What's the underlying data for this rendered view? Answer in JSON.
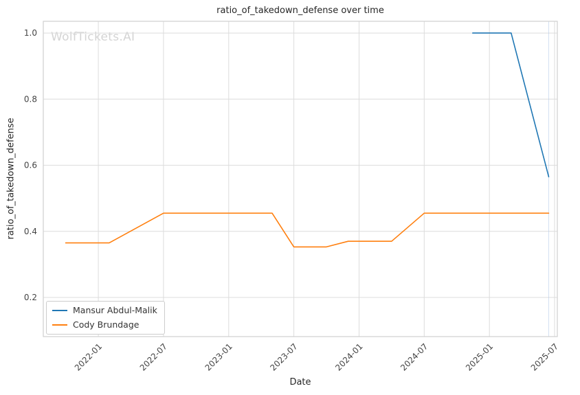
{
  "watermark": "WolfTickets.AI",
  "chart_data": {
    "type": "line",
    "title": "ratio_of_takedown_defense over time",
    "xlabel": "Date",
    "ylabel": "ratio_of_takedown_defense",
    "x_tick_labels": [
      "2022-01",
      "2022-07",
      "2023-01",
      "2023-07",
      "2024-01",
      "2024-07",
      "2025-01",
      "2025-07"
    ],
    "y_tick_values": [
      0.2,
      0.4,
      0.6,
      0.8,
      1.0
    ],
    "xlim": [
      2021.578,
      2025.521
    ],
    "ylim": [
      0.0816,
      1.0355
    ],
    "grid": true,
    "legend_position": "lower left",
    "series": [
      {
        "name": "Mansur Abdul-Malik",
        "color": "#1f77b4",
        "points": [
          [
            "2024-11-15",
            1.0
          ],
          [
            "2025-03",
            1.0
          ],
          [
            "2025-06-15",
            0.565
          ]
        ]
      },
      {
        "name": "Cody Brundage",
        "color": "#ff7f0e",
        "points": [
          [
            "2021-10",
            0.365
          ],
          [
            "2022-02",
            0.365
          ],
          [
            "2022-07",
            0.455
          ],
          [
            "2023-05",
            0.455
          ],
          [
            "2023-07",
            0.353
          ],
          [
            "2023-10",
            0.353
          ],
          [
            "2023-12",
            0.37
          ],
          [
            "2024-04",
            0.37
          ],
          [
            "2024-07",
            0.455
          ],
          [
            "2025-06-15",
            0.455
          ]
        ]
      }
    ],
    "annotations": [
      {
        "type": "vline",
        "x": "2025-06-15",
        "color": "#aec7e8",
        "opacity": 0.55
      }
    ]
  }
}
